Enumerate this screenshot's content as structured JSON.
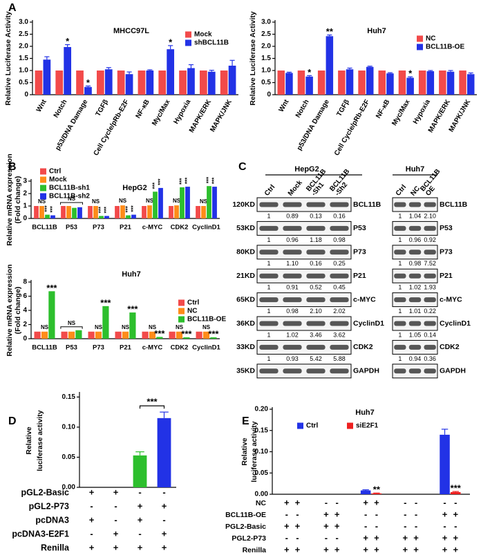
{
  "panels": [
    "A",
    "B",
    "C",
    "D",
    "E"
  ],
  "chart_data": [
    {
      "type": "bar",
      "title": "MHCC97L",
      "y_label": [
        "Relative Luciferase Activity"
      ],
      "categories": [
        "Wnt",
        "Notch",
        "p53/DNA Damage",
        "TGFβ",
        "Cell Cycle/pRb-E2F",
        "NF-κB",
        "Myc/Max",
        "Hypoxia",
        "MAPK/ERK",
        "MAPK/JNK"
      ],
      "series": [
        {
          "name": "Mock",
          "color": "#f24a4a",
          "values": [
            1,
            1,
            1,
            1,
            1,
            1,
            1,
            1,
            1,
            1
          ]
        },
        {
          "name": "shBCL11B",
          "color": "#2232e6",
          "values": [
            1.45,
            1.97,
            0.32,
            1.05,
            0.85,
            1,
            1.88,
            1.1,
            0.95,
            1.2
          ],
          "errors": [
            0.12,
            0.1,
            0.04,
            0.07,
            0.09,
            0.03,
            0.15,
            0.14,
            0.06,
            0.22
          ],
          "significance": [
            null,
            "*",
            "*",
            null,
            null,
            null,
            "*",
            null,
            null,
            null
          ]
        }
      ],
      "ylim": [
        0,
        3
      ],
      "yticks": [
        0,
        0.5,
        {
          "value": 1,
          "label": "1.0"
        },
        1.5,
        {
          "value": 2,
          "label": "2.0"
        },
        2.5,
        {
          "value": 3,
          "label": "3.0"
        }
      ],
      "legend": "upper right"
    },
    {
      "type": "bar",
      "title": "Huh7",
      "y_label": [
        "Relative Luciferase Activity"
      ],
      "categories": [
        "Wnt",
        "Notch",
        "p53/DNA Damage",
        "TGFβ",
        "Cell Cycle/pRb-E2F",
        "NF-κB",
        "Myc/Max",
        "Hypoxia",
        "MAPK/ERK",
        "MAPK/JNK"
      ],
      "series": [
        {
          "name": "NC",
          "color": "#f24a4a",
          "values": [
            1,
            1,
            1,
            1,
            1,
            1,
            1,
            1,
            1,
            1
          ]
        },
        {
          "name": "BCL11B-OE",
          "color": "#2232e6",
          "values": [
            0.9,
            0.75,
            2.42,
            1.05,
            1.15,
            0.88,
            0.7,
            0.97,
            0.95,
            0.85
          ],
          "errors": [
            0.03,
            0.04,
            0.05,
            0.05,
            0.03,
            0.03,
            0.04,
            0.03,
            0.05,
            0.05
          ],
          "significance": [
            null,
            "*",
            "**",
            null,
            null,
            null,
            "*",
            null,
            null,
            null
          ]
        }
      ],
      "ylim": [
        0,
        3
      ],
      "yticks": [
        0,
        0.5,
        {
          "value": 1,
          "label": "1.0"
        },
        1.5,
        {
          "value": 2,
          "label": "2.0"
        },
        2.5,
        {
          "value": 3,
          "label": "3.0"
        }
      ],
      "legend": "upper right"
    },
    {
      "type": "bar",
      "title": "HepG2",
      "y_label": [
        "Relative mRNA expression",
        "(Fold change)"
      ],
      "categories": [
        "BCL11B",
        "P53",
        "P73",
        "P21",
        "c-MYC",
        "CDK2",
        "CyclinD1"
      ],
      "series": [
        {
          "name": "Ctrl",
          "color": "#f24a4a",
          "values": [
            1,
            1,
            1,
            1,
            1,
            1,
            1
          ]
        },
        {
          "name": "Mock",
          "color": "#ff8c1a",
          "values": [
            1,
            1,
            1,
            1.05,
            1.05,
            1.05,
            1
          ],
          "significance": [
            "NS",
            null,
            "NS",
            "NS",
            "NS",
            "NS",
            "NS"
          ]
        },
        {
          "name": "BCL11B-sh1",
          "color": "#2dbf2d",
          "values": [
            0.3,
            0.85,
            0.2,
            0.25,
            2.15,
            2.5,
            2.6
          ],
          "significance": [
            "***",
            null,
            "***",
            "***",
            "***",
            "***",
            "***"
          ]
        },
        {
          "name": "BCL11B-sh2",
          "color": "#2232e6",
          "values": [
            0.25,
            0.9,
            0.2,
            0.3,
            2.45,
            2.55,
            2.55
          ],
          "significance": [
            "***",
            null,
            "***",
            "***",
            "***",
            "***",
            "***"
          ]
        }
      ],
      "group_annotations": [
        {
          "text": "NS",
          "index": 1
        }
      ],
      "ylim": [
        0,
        3
      ],
      "yticks": [
        0,
        1,
        2,
        3
      ],
      "legend": "upper left"
    },
    {
      "type": "bar",
      "title": "Huh7",
      "y_label": [
        "Relative mRNA expression",
        "(Fold change)"
      ],
      "categories": [
        "BCL11B",
        "P53",
        "P73",
        "P21",
        "c-MYC",
        "CDK2",
        "CyclinD1"
      ],
      "series": [
        {
          "name": "Ctrl",
          "color": "#f24a4a",
          "values": [
            1,
            1,
            1,
            1,
            1,
            1,
            1
          ]
        },
        {
          "name": "NC",
          "color": "#ff8c1a",
          "values": [
            1,
            1,
            1,
            1,
            1,
            1,
            1
          ],
          "significance": [
            "NS",
            null,
            "NS",
            "NS",
            "NS",
            "NS",
            "NS"
          ]
        },
        {
          "name": "BCL11B-OE",
          "color": "#2dbf2d",
          "values": [
            6.7,
            1.2,
            4.6,
            3.7,
            0.25,
            0.2,
            0.2
          ],
          "significance": [
            "***",
            null,
            "***",
            "***",
            "***",
            "***",
            "***"
          ]
        }
      ],
      "group_annotations": [
        {
          "text": "NS",
          "index": 1
        }
      ],
      "ylim": [
        0,
        8
      ],
      "yticks": [
        0,
        2,
        4,
        6,
        8
      ],
      "legend": "upper right"
    },
    {
      "type": "bar",
      "y_label": [
        "Relative",
        "luciferase activity"
      ],
      "categories": [
        null,
        null,
        null,
        null
      ],
      "series": [
        {
          "colors": [
            null,
            null,
            "#2dbf2d",
            "#2232e6"
          ],
          "values": [
            0,
            0,
            0.053,
            0.115
          ],
          "errors": [
            null,
            null,
            0.006,
            0.01
          ]
        }
      ],
      "comparisons": [
        {
          "text": "***",
          "between": [
            2,
            3
          ]
        }
      ],
      "ylim": [
        0,
        0.155
      ],
      "yticks": [
        {
          "value": 0,
          "label": "0.00"
        },
        0.05,
        {
          "value": 0.1,
          "label": "0.10"
        },
        0.15
      ],
      "conditions": [
        {
          "name": "pGL2-Basic",
          "marks": [
            "+",
            "+",
            "-",
            "-"
          ]
        },
        {
          "name": "pGL2-P73",
          "marks": [
            "-",
            "-",
            "+",
            "+"
          ]
        },
        {
          "name": "pcDNA3",
          "marks": [
            "+",
            "-",
            "+",
            "-"
          ]
        },
        {
          "name": "pcDNA3-E2F1",
          "marks": [
            "-",
            "+",
            "-",
            "+"
          ]
        },
        {
          "name": "Renilla",
          "marks": [
            "+",
            "+",
            "+",
            "+"
          ]
        }
      ]
    },
    {
      "type": "bar",
      "title": "Huh7",
      "y_label": [
        "Relative",
        "luciferase activity"
      ],
      "categories": [
        null,
        null,
        null,
        null,
        null
      ],
      "series": [
        {
          "name": "Ctrl",
          "color": "#2232e6",
          "values": [
            0,
            0,
            0.009,
            0,
            0.14
          ],
          "errors": [
            null,
            null,
            0.0015,
            null,
            0.013
          ]
        },
        {
          "name": "siE2F1",
          "color": "#ee2020",
          "values": [
            0,
            0,
            0.002,
            0,
            0.005
          ],
          "errors": [
            null,
            null,
            0.0008,
            null,
            0.0015
          ],
          "significance": [
            null,
            null,
            "**",
            null,
            "***"
          ]
        }
      ],
      "ylim": [
        0,
        0.2
      ],
      "yticks": [
        {
          "value": 0,
          "label": "0.00"
        },
        0.05,
        {
          "value": 0.1,
          "label": "0.10"
        },
        0.15,
        {
          "value": 0.2,
          "label": "0.20"
        }
      ],
      "legend": "upper left",
      "conditions": [
        {
          "name": "NC",
          "marks": [
            "+",
            "+",
            "-",
            "-",
            "+",
            "+",
            "-",
            "-",
            "-",
            "-"
          ]
        },
        {
          "name": "BCL11B-OE",
          "marks": [
            "-",
            "-",
            "+",
            "+",
            "-",
            "-",
            "-",
            "-",
            "+",
            "+"
          ]
        },
        {
          "name": "PGL2-Basic",
          "marks": [
            "+",
            "+",
            "+",
            "+",
            "-",
            "-",
            "-",
            "-",
            "-",
            "-"
          ]
        },
        {
          "name": "PGL2-P73",
          "marks": [
            "-",
            "-",
            "-",
            "-",
            "+",
            "+",
            "+",
            "+",
            "+",
            "+"
          ]
        },
        {
          "name": "Renilla",
          "marks": [
            "+",
            "+",
            "+",
            "+",
            "+",
            "+",
            "+",
            "+",
            "+",
            "+"
          ]
        }
      ]
    }
  ],
  "blot": {
    "groups": [
      {
        "title": "HepG2",
        "lanes": [
          "Ctrl",
          "Mock",
          [
            "BCL11B",
            "-Sh1"
          ],
          [
            "BCL11B",
            "-Sh2"
          ]
        ]
      },
      {
        "title": "Huh7",
        "lanes": [
          "Ctrl",
          "NC",
          [
            "BCL11B",
            "OE"
          ]
        ]
      }
    ],
    "rows": [
      {
        "size": "120KD",
        "protein": "BCL11B",
        "quant": [
          [
            "1",
            "0.89",
            "0.13",
            "0.16"
          ],
          [
            "1",
            "1.04",
            "2.10"
          ]
        ]
      },
      {
        "size": "53KD",
        "protein": "P53",
        "quant": [
          [
            "1",
            "0.96",
            "1.18",
            "0.98"
          ],
          [
            "1",
            "0.96",
            "0.92"
          ]
        ]
      },
      {
        "size": "80KD",
        "protein": "P73",
        "quant": [
          [
            "1",
            "1.10",
            "0.16",
            "0.25"
          ],
          [
            "1",
            "0.98",
            "7.52"
          ]
        ]
      },
      {
        "size": "21KD",
        "protein": "P21",
        "quant": [
          [
            "1",
            "0.91",
            "0.52",
            "0.45"
          ],
          [
            "1",
            "1.02",
            "1.93"
          ]
        ]
      },
      {
        "size": "65KD",
        "protein": "c-MYC",
        "quant": [
          [
            "1",
            "0.98",
            "2.10",
            "2.02"
          ],
          [
            "1",
            "1.01",
            "0.22"
          ]
        ]
      },
      {
        "size": "36KD",
        "protein": "CyclinD1",
        "quant": [
          [
            "1",
            "1.02",
            "3.46",
            "3.62"
          ],
          [
            "1",
            "1.05",
            "0.14"
          ]
        ]
      },
      {
        "size": "33KD",
        "protein": "CDK2",
        "quant": [
          [
            "1",
            "0.93",
            "5.42",
            "5.88"
          ],
          [
            "1",
            "0.94",
            "0.36"
          ]
        ]
      },
      {
        "size": "35KD",
        "protein": "GAPDH"
      }
    ]
  }
}
